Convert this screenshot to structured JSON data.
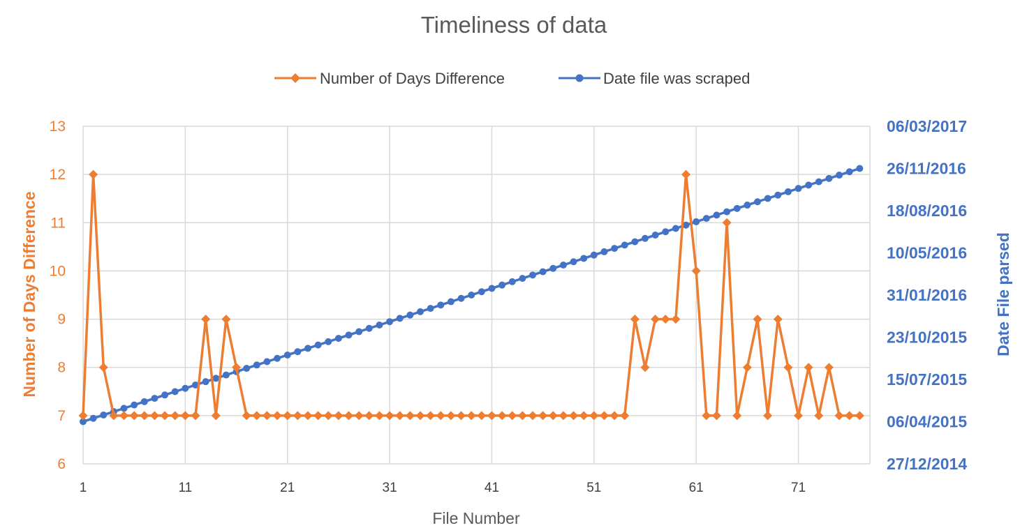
{
  "chart_data": {
    "type": "line",
    "title": "Timeliness of data",
    "xlabel": "File Number",
    "ylabel": "Number of Days Difference",
    "y2label": "Date File parsed",
    "x": [
      1,
      2,
      3,
      4,
      5,
      6,
      7,
      8,
      9,
      10,
      11,
      12,
      13,
      14,
      15,
      16,
      17,
      18,
      19,
      20,
      21,
      22,
      23,
      24,
      25,
      26,
      27,
      28,
      29,
      30,
      31,
      32,
      33,
      34,
      35,
      36,
      37,
      38,
      39,
      40,
      41,
      42,
      43,
      44,
      45,
      46,
      47,
      48,
      49,
      50,
      51,
      52,
      53,
      54,
      55,
      56,
      57,
      58,
      59,
      60,
      61,
      62,
      63,
      64,
      65,
      66,
      67,
      68,
      69,
      70,
      71,
      72,
      73,
      74,
      75,
      76,
      77
    ],
    "x_ticks": [
      "1",
      "11",
      "21",
      "31",
      "41",
      "51",
      "61",
      "71"
    ],
    "xlim": [
      1,
      78
    ],
    "ylim": [
      6,
      13
    ],
    "y_ticks": [
      "6",
      "7",
      "8",
      "9",
      "10",
      "11",
      "12",
      "13"
    ],
    "y2lim": [
      "27/12/2014",
      "06/03/2017"
    ],
    "y2_ticks": [
      "27/12/2014",
      "06/04/2015",
      "15/07/2015",
      "23/10/2015",
      "31/01/2016",
      "10/05/2016",
      "18/08/2016",
      "26/11/2016",
      "06/03/2017"
    ],
    "grid": true,
    "legend_position": "top",
    "series": [
      {
        "name": "Number of Days Difference",
        "axis": "left",
        "color": "#ED7D31",
        "marker": "diamond",
        "values": [
          7,
          12,
          8,
          7,
          7,
          7,
          7,
          7,
          7,
          7,
          7,
          7,
          9,
          7,
          9,
          8,
          7,
          7,
          7,
          7,
          7,
          7,
          7,
          7,
          7,
          7,
          7,
          7,
          7,
          7,
          7,
          7,
          7,
          7,
          7,
          7,
          7,
          7,
          7,
          7,
          7,
          7,
          7,
          7,
          7,
          7,
          7,
          7,
          7,
          7,
          7,
          7,
          7,
          7,
          9,
          8,
          9,
          9,
          9,
          12,
          10,
          7,
          7,
          11,
          7,
          8,
          9,
          7,
          9,
          8,
          7,
          8,
          7,
          8,
          7,
          7,
          7
        ]
      },
      {
        "name": "Date file was scraped",
        "axis": "right",
        "color": "#4472C4",
        "marker": "circle",
        "first": "06/04/2015",
        "last": "26/11/2016"
      }
    ]
  }
}
